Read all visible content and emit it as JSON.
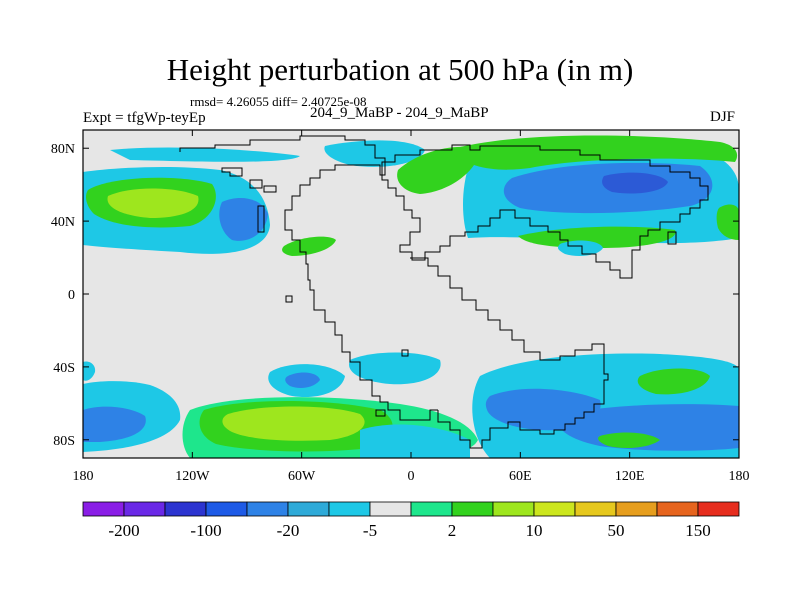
{
  "chart_data": {
    "type": "heatmap",
    "title": "Height perturbation at 500 hPa (in m)",
    "stats_text": "rmsd= 4.26055 diff= 2.40725e-08",
    "experiment": "Expt = tfgWp-teyEp",
    "cases": "204_9_MaBP - 204_9_MaBP",
    "season": "DJF",
    "x_ticks": [
      "180",
      "120W",
      "60W",
      "0",
      "60E",
      "120E",
      "180"
    ],
    "x_tick_values": [
      -180,
      -120,
      -60,
      0,
      60,
      120,
      180
    ],
    "y_ticks": [
      "80N",
      "40N",
      "0",
      "40S",
      "80S"
    ],
    "y_tick_values": [
      80,
      40,
      0,
      -40,
      -80
    ],
    "xlim": [
      -180,
      180
    ],
    "ylim": [
      -90,
      90
    ],
    "colorbar": {
      "colors": [
        "#8a1ee6",
        "#6a28e6",
        "#2c34d0",
        "#1e5ae6",
        "#2e82e6",
        "#2eaad8",
        "#1ec8e6",
        "#e6e6e6",
        "#1ee68c",
        "#32d21e",
        "#9ee61e",
        "#cce61e",
        "#e6c81e",
        "#e69e1e",
        "#e6641e",
        "#e62d1e"
      ],
      "labels": [
        "-200",
        "-100",
        "-20",
        "-5",
        "2",
        "10",
        "50",
        "150"
      ]
    },
    "anomalies": [
      {
        "lon": -140,
        "lat": 48,
        "level": "10 to 50",
        "sign": "positive"
      },
      {
        "lon": -75,
        "lat": 42,
        "level": "-5 to -20",
        "sign": "negative"
      },
      {
        "lon": 95,
        "lat": 52,
        "level": "-5 to -20",
        "sign": "negative"
      },
      {
        "lon": -45,
        "lat": -72,
        "level": "10 to 50",
        "sign": "positive"
      },
      {
        "lon": 120,
        "lat": -72,
        "level": "-5 to -20",
        "sign": "negative"
      },
      {
        "lon": 140,
        "lat": -49,
        "level": "2 to 10",
        "sign": "positive"
      }
    ]
  }
}
